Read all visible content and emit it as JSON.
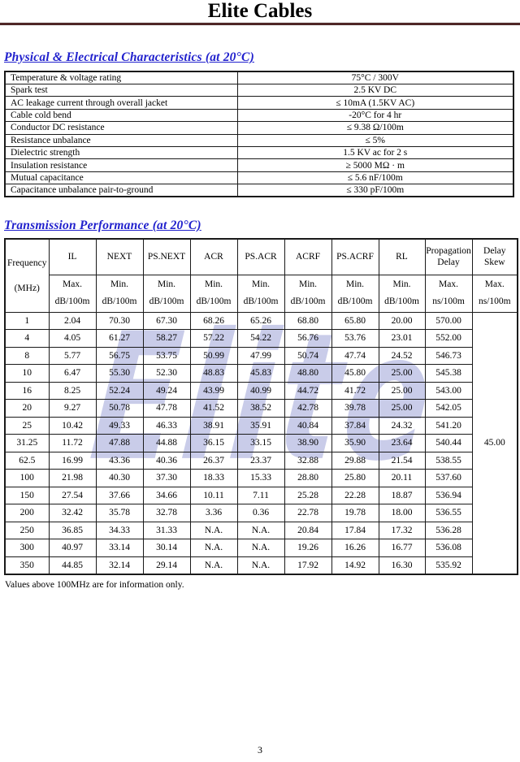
{
  "page": {
    "title": "Elite Cables",
    "page_number": "3",
    "footnote": "Values above 100MHz are for information only.",
    "watermark": "Elite",
    "accent_heading_color": "#2121cd",
    "rule_color": "#7b4444",
    "watermark_color": "#c9cce9"
  },
  "physical": {
    "heading": "Physical & Electrical Characteristics (at 20°C)",
    "rows": [
      {
        "label": "Temperature & voltage rating",
        "value": "75°C / 300V"
      },
      {
        "label": "Spark test",
        "value": "2.5 KV DC"
      },
      {
        "label": "AC leakage current through overall jacket",
        "value": "≤ 10mA (1.5KV AC)"
      },
      {
        "label": "Cable cold bend",
        "value": "-20°C for 4 hr"
      },
      {
        "label": "Conductor DC resistance",
        "value": "≤ 9.38  Ω/100m"
      },
      {
        "label": "Resistance unbalance",
        "value": "≤ 5%"
      },
      {
        "label": "Dielectric strength",
        "value": "1.5 KV ac for 2 s"
      },
      {
        "label": "Insulation resistance",
        "value": "≥ 5000 MΩ · m"
      },
      {
        "label": "Mutual capacitance",
        "value": "≤ 5.6 nF/100m"
      },
      {
        "label": "Capacitance unbalance pair-to-ground",
        "value": "≤ 330 pF/100m"
      }
    ]
  },
  "transmission": {
    "heading": "Transmission Performance (at 20°C)",
    "frequency_header": {
      "name": "Frequency",
      "unit": "(MHz)"
    },
    "columns": [
      {
        "name": "IL",
        "limit": "Max.",
        "unit": "dB/100m"
      },
      {
        "name": "NEXT",
        "limit": "Min.",
        "unit": "dB/100m"
      },
      {
        "name": "PS.NEXT",
        "limit": "Min.",
        "unit": "dB/100m"
      },
      {
        "name": "ACR",
        "limit": "Min.",
        "unit": "dB/100m"
      },
      {
        "name": "PS.ACR",
        "limit": "Min.",
        "unit": "dB/100m"
      },
      {
        "name": "ACRF",
        "limit": "Min.",
        "unit": "dB/100m"
      },
      {
        "name": "PS.ACRF",
        "limit": "Min.",
        "unit": "dB/100m"
      },
      {
        "name": "RL",
        "limit": "Min.",
        "unit": "dB/100m"
      },
      {
        "name": "Propagation\nDelay",
        "limit": "Max.",
        "unit": "ns/100m"
      },
      {
        "name": "Delay\nSkew",
        "limit": "Max.",
        "unit": "ns/100m"
      }
    ],
    "delay_skew_value": "45.00",
    "rows": [
      {
        "freq": "1",
        "values": [
          "2.04",
          "70.30",
          "67.30",
          "68.26",
          "65.26",
          "68.80",
          "65.80",
          "20.00",
          "570.00"
        ]
      },
      {
        "freq": "4",
        "values": [
          "4.05",
          "61.27",
          "58.27",
          "57.22",
          "54.22",
          "56.76",
          "53.76",
          "23.01",
          "552.00"
        ]
      },
      {
        "freq": "8",
        "values": [
          "5.77",
          "56.75",
          "53.75",
          "50.99",
          "47.99",
          "50.74",
          "47.74",
          "24.52",
          "546.73"
        ]
      },
      {
        "freq": "10",
        "values": [
          "6.47",
          "55.30",
          "52.30",
          "48.83",
          "45.83",
          "48.80",
          "45.80",
          "25.00",
          "545.38"
        ]
      },
      {
        "freq": "16",
        "values": [
          "8.25",
          "52.24",
          "49.24",
          "43.99",
          "40.99",
          "44.72",
          "41.72",
          "25.00",
          "543.00"
        ]
      },
      {
        "freq": "20",
        "values": [
          "9.27",
          "50.78",
          "47.78",
          "41.52",
          "38.52",
          "42.78",
          "39.78",
          "25.00",
          "542.05"
        ]
      },
      {
        "freq": "25",
        "values": [
          "10.42",
          "49.33",
          "46.33",
          "38.91",
          "35.91",
          "40.84",
          "37.84",
          "24.32",
          "541.20"
        ]
      },
      {
        "freq": "31.25",
        "values": [
          "11.72",
          "47.88",
          "44.88",
          "36.15",
          "33.15",
          "38.90",
          "35.90",
          "23.64",
          "540.44"
        ]
      },
      {
        "freq": "62.5",
        "values": [
          "16.99",
          "43.36",
          "40.36",
          "26.37",
          "23.37",
          "32.88",
          "29.88",
          "21.54",
          "538.55"
        ]
      },
      {
        "freq": "100",
        "values": [
          "21.98",
          "40.30",
          "37.30",
          "18.33",
          "15.33",
          "28.80",
          "25.80",
          "20.11",
          "537.60"
        ]
      },
      {
        "freq": "150",
        "values": [
          "27.54",
          "37.66",
          "34.66",
          "10.11",
          "7.11",
          "25.28",
          "22.28",
          "18.87",
          "536.94"
        ]
      },
      {
        "freq": "200",
        "values": [
          "32.42",
          "35.78",
          "32.78",
          "3.36",
          "0.36",
          "22.78",
          "19.78",
          "18.00",
          "536.55"
        ]
      },
      {
        "freq": "250",
        "values": [
          "36.85",
          "34.33",
          "31.33",
          "N.A.",
          "N.A.",
          "20.84",
          "17.84",
          "17.32",
          "536.28"
        ]
      },
      {
        "freq": "300",
        "values": [
          "40.97",
          "33.14",
          "30.14",
          "N.A.",
          "N.A.",
          "19.26",
          "16.26",
          "16.77",
          "536.08"
        ]
      },
      {
        "freq": "350",
        "values": [
          "44.85",
          "32.14",
          "29.14",
          "N.A.",
          "N.A.",
          "17.92",
          "14.92",
          "16.30",
          "535.92"
        ]
      }
    ]
  }
}
